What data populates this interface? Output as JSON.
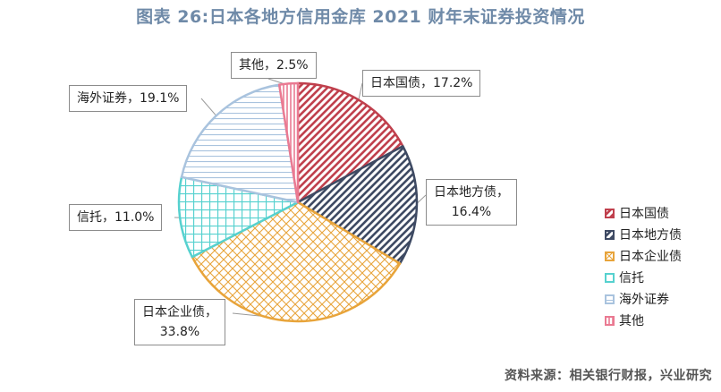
{
  "title": "图表 26:日本各地方信用金库 2021 财年末证券投资情况",
  "source": "资料来源：相关银行财报，兴业研究",
  "chart_data": {
    "type": "pie",
    "series": [
      {
        "name": "日本国债",
        "value": 17.2,
        "label": "日本国债，17.2%",
        "label_lines": [
          "日本国债，17.2%"
        ],
        "color": "#c0404d",
        "pattern": "diag-right"
      },
      {
        "name": "日本地方债",
        "value": 16.4,
        "label": "日本地方债，16.4%",
        "label_lines": [
          "日本地方债，",
          "16.4%"
        ],
        "color": "#3e4a63",
        "pattern": "diag-right"
      },
      {
        "name": "日本企业债",
        "value": 33.8,
        "label": "日本企业债，33.8%",
        "label_lines": [
          "日本企业债，",
          "33.8%"
        ],
        "color": "#e8a43a",
        "pattern": "crosshatch"
      },
      {
        "name": "信托",
        "value": 11.0,
        "label": "信托，11.0%",
        "label_lines": [
          "信托，11.0%"
        ],
        "color": "#56d1cf",
        "pattern": "grid"
      },
      {
        "name": "海外证券",
        "value": 19.1,
        "label": "海外证券，19.1%",
        "label_lines": [
          "海外证券，19.1%"
        ],
        "color": "#a9c3de",
        "pattern": "horizontal"
      },
      {
        "name": "其他",
        "value": 2.5,
        "label": "其他，2.5%",
        "label_lines": [
          "其他，2.5%"
        ],
        "color": "#ea7a92",
        "pattern": "vertical"
      }
    ],
    "legend": {
      "position": "right"
    }
  }
}
